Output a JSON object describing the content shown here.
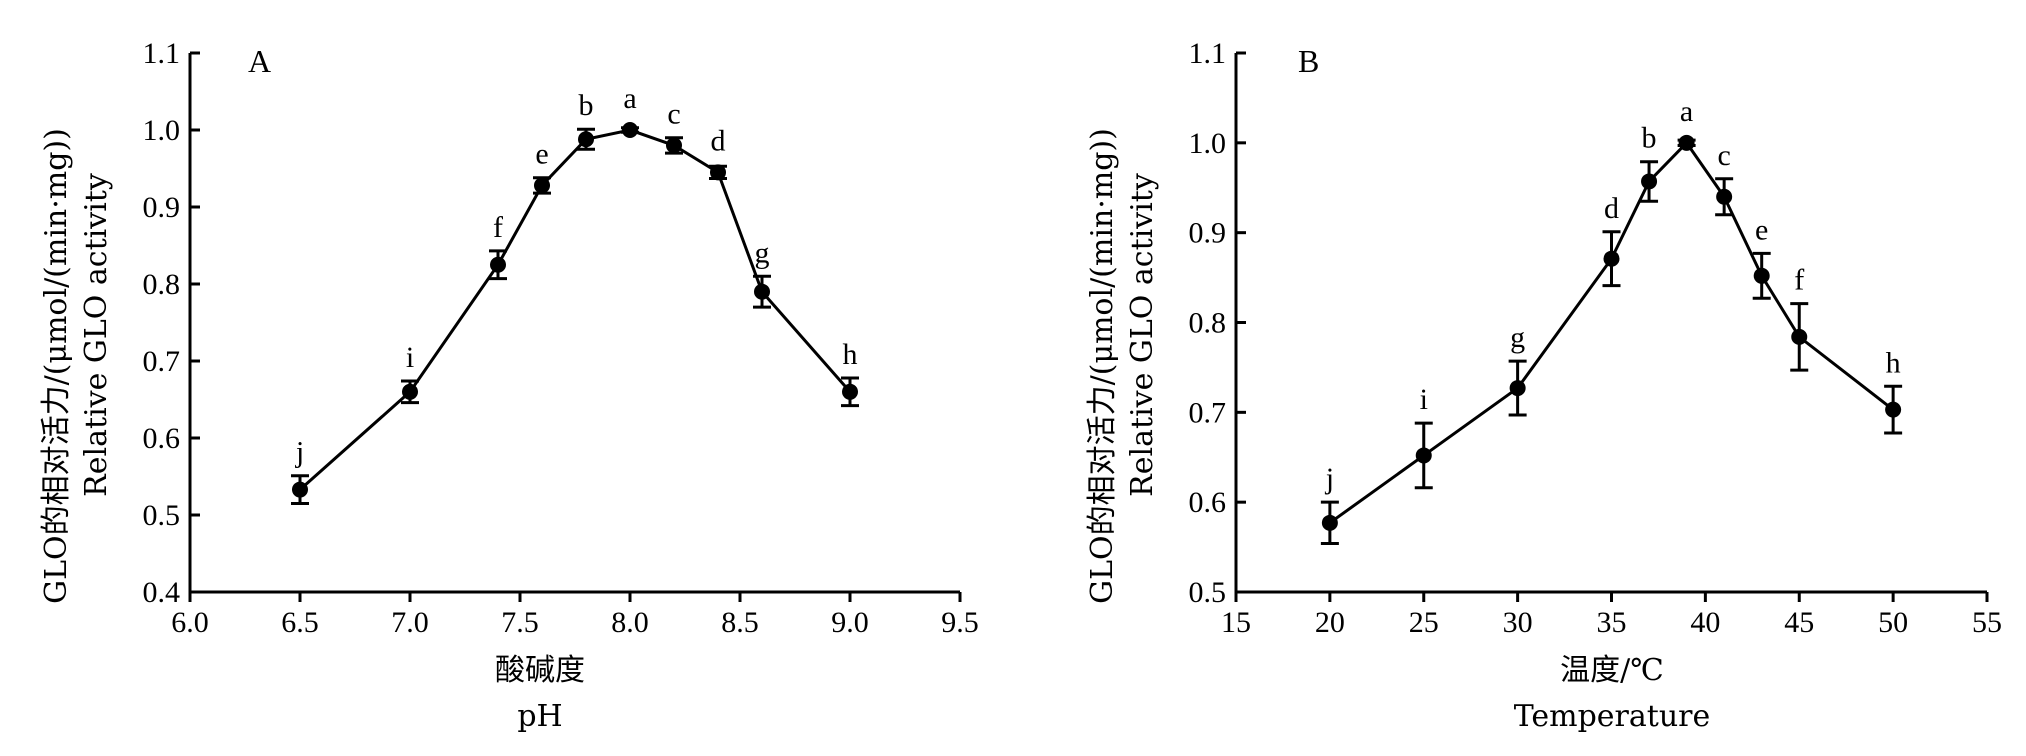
{
  "chart_data": [
    {
      "type": "line",
      "panel_label": "A",
      "xlabel_cn": "酸碱度",
      "xlabel_en": "pH",
      "ylabel_cn": "GLO的相对活力/(μmol/(min·mg))",
      "ylabel_en": "Relative GLO activity",
      "xlim": [
        6.0,
        9.5
      ],
      "ylim": [
        0.4,
        1.1
      ],
      "xticks": [
        "6.0",
        "6.5",
        "7.0",
        "7.5",
        "8.0",
        "8.5",
        "9.0",
        "9.5"
      ],
      "yticks": [
        "0.4",
        "0.5",
        "0.6",
        "0.7",
        "0.8",
        "0.9",
        "1.0",
        "1.1"
      ],
      "grid": false,
      "series": [
        {
          "x": [
            6.5,
            7.0,
            7.4,
            7.6,
            7.8,
            8.0,
            8.2,
            8.4,
            8.6,
            9.0
          ],
          "y": [
            0.533,
            0.66,
            0.825,
            0.928,
            0.988,
            1.0,
            0.98,
            0.945,
            0.79,
            0.66
          ],
          "err": [
            0.018,
            0.014,
            0.018,
            0.01,
            0.013,
            0.003,
            0.01,
            0.008,
            0.02,
            0.018
          ],
          "labels": [
            "j",
            "i",
            "f",
            "e",
            "b",
            "a",
            "c",
            "d",
            "g",
            "h"
          ]
        }
      ]
    },
    {
      "type": "line",
      "panel_label": "B",
      "xlabel_cn": "温度/℃",
      "xlabel_en": "Temperature",
      "ylabel_cn": "GLO的相对活力/(μmol/(min·mg))",
      "ylabel_en": "Relative GLO activity",
      "xlim": [
        15,
        55
      ],
      "ylim": [
        0.5,
        1.1
      ],
      "xticks": [
        "15",
        "20",
        "25",
        "30",
        "35",
        "40",
        "45",
        "50",
        "55"
      ],
      "yticks": [
        "0.5",
        "0.6",
        "0.7",
        "0.8",
        "0.9",
        "1.0",
        "1.1"
      ],
      "grid": false,
      "series": [
        {
          "x": [
            20,
            25,
            30,
            35,
            37,
            39,
            41,
            43,
            45,
            50
          ],
          "y": [
            0.577,
            0.652,
            0.727,
            0.871,
            0.957,
            1.0,
            0.94,
            0.852,
            0.784,
            0.703
          ],
          "err": [
            0.023,
            0.036,
            0.03,
            0.03,
            0.022,
            0.003,
            0.02,
            0.025,
            0.037,
            0.026
          ],
          "labels": [
            "j",
            "i",
            "g",
            "d",
            "b",
            "a",
            "c",
            "e",
            "f",
            "h"
          ]
        }
      ]
    }
  ]
}
